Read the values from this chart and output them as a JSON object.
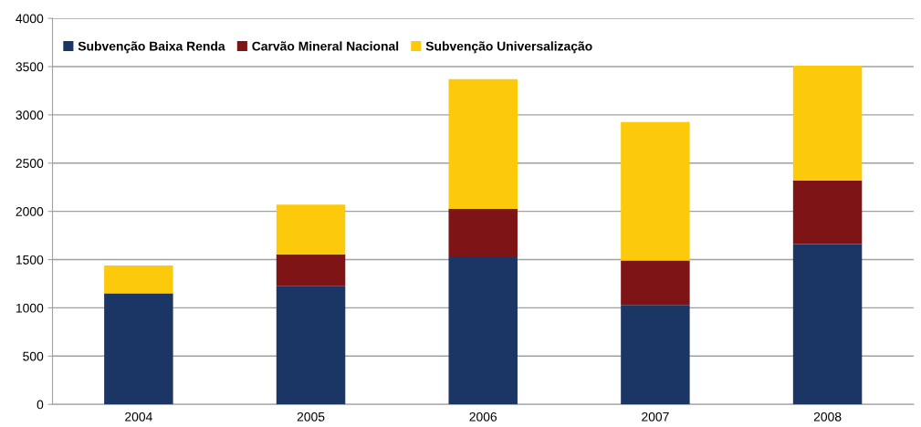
{
  "chart_data": {
    "type": "bar",
    "stacked": true,
    "categories": [
      "2004",
      "2005",
      "2006",
      "2007",
      "2008"
    ],
    "series": [
      {
        "name": "Subvenção Baixa Renda",
        "color": "#1b3564",
        "values": [
          1150,
          1225,
          1525,
          1030,
          1660
        ]
      },
      {
        "name": "Carvão Mineral Nacional",
        "color": "#7f1416",
        "values": [
          0,
          330,
          500,
          460,
          660
        ]
      },
      {
        "name": "Subvenção Universalização",
        "color": "#fcca0a",
        "values": [
          290,
          515,
          1345,
          1435,
          1190
        ]
      }
    ],
    "ylim": [
      0,
      4000
    ],
    "yticks": [
      0,
      500,
      1000,
      1500,
      2000,
      2500,
      3000,
      3500,
      4000
    ],
    "grid": "y",
    "legend": "top left"
  }
}
